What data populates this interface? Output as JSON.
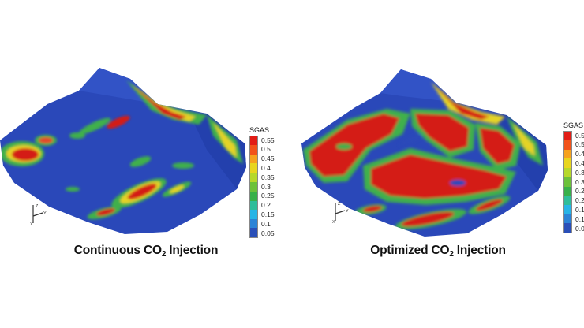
{
  "panels": [
    {
      "caption_pre": "Continuous CO",
      "caption_sub": "2",
      "caption_post": " Injection",
      "colorbar_title": "SGAS"
    },
    {
      "caption_pre": "Optimized CO",
      "caption_sub": "2",
      "caption_post": " Injection",
      "colorbar_title": "SGAS"
    }
  ],
  "colorbar": {
    "ticks": [
      "0.55",
      "0.5",
      "0.45",
      "0.4",
      "0.35",
      "0.3",
      "0.25",
      "0.2",
      "0.15",
      "0.1",
      "0.05"
    ],
    "colors": [
      "#e21d16",
      "#f2531a",
      "#f6a21e",
      "#e8d51e",
      "#b6d82a",
      "#6cc13a",
      "#38b04a",
      "#2fbd9a",
      "#27b4e6",
      "#2b83d6",
      "#2a4fb8"
    ]
  },
  "colors": {
    "base_blue": "#2845b8",
    "low_green": "#3fb04b",
    "mid_yellow": "#e4d325",
    "high_red": "#d41c14"
  },
  "axis_labels": {
    "z": "Z",
    "y": "Y",
    "x": "X"
  }
}
